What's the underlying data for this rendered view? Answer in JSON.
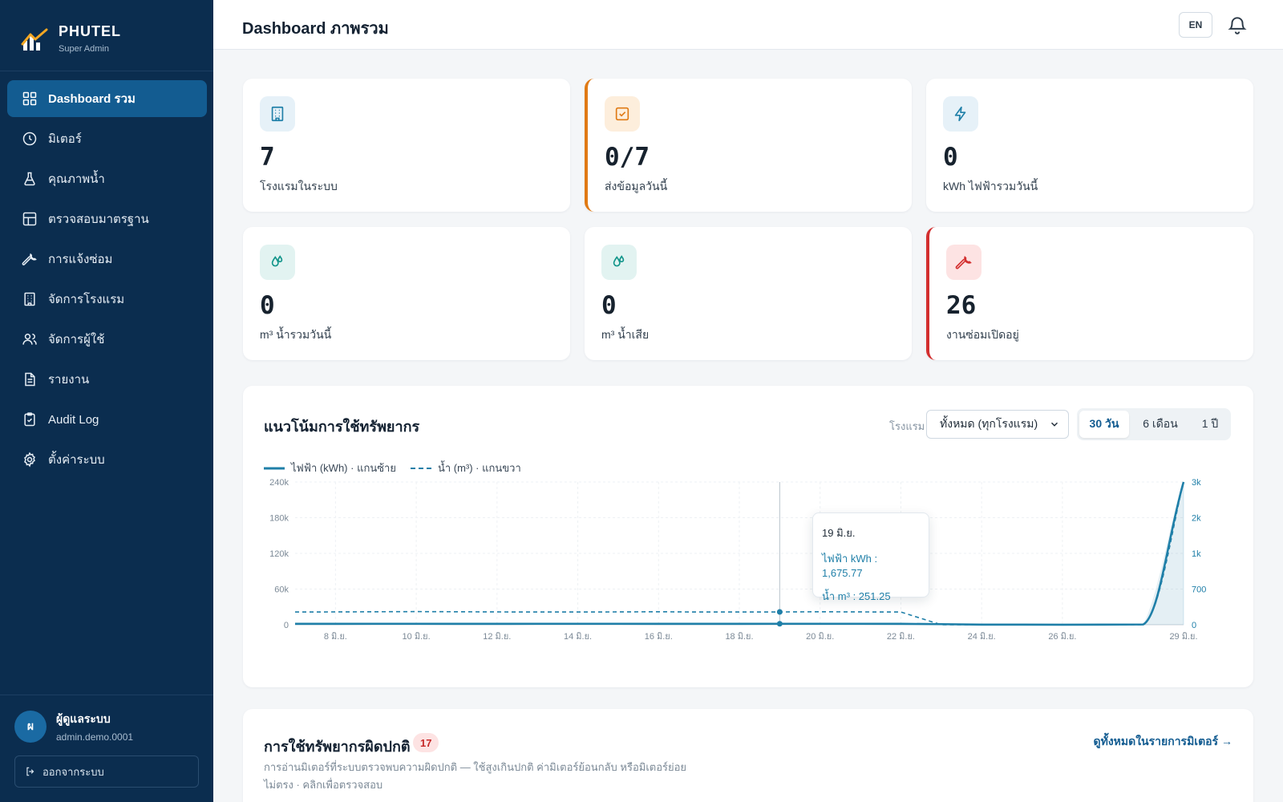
{
  "brand": {
    "name": "PHUTEL",
    "role": "Super Admin"
  },
  "sidebar": {
    "items": [
      {
        "label": "Dashboard รวม",
        "icon": "grid-icon",
        "active": true
      },
      {
        "label": "มิเตอร์",
        "icon": "clock-icon"
      },
      {
        "label": "คุณภาพน้ำ",
        "icon": "flask-icon"
      },
      {
        "label": "ตรวจสอบมาตรฐาน",
        "icon": "layout-icon"
      },
      {
        "label": "การแจ้งซ่อม",
        "icon": "wrench-icon"
      },
      {
        "label": "จัดการโรงแรม",
        "icon": "building-icon"
      },
      {
        "label": "จัดการผู้ใช้",
        "icon": "users-icon"
      },
      {
        "label": "รายงาน",
        "icon": "document-icon"
      },
      {
        "label": "Audit Log",
        "icon": "clipboard-icon"
      },
      {
        "label": "ตั้งค่าระบบ",
        "icon": "gear-icon"
      }
    ]
  },
  "user": {
    "initial": "ผ",
    "name": "ผู้ดูแลระบบ",
    "email": "admin.demo.0001"
  },
  "logout_label": "ออกจากระบบ",
  "header": {
    "title": "Dashboard ภาพรวม",
    "lang": "EN"
  },
  "stats": [
    {
      "value": "7",
      "label": "โรงแรมในระบบ",
      "icon": "building-icon",
      "color": "#1f7fa8"
    },
    {
      "value": "0/7",
      "label": "ส่งข้อมูลวันนี้",
      "icon": "checkbox-icon",
      "color": "#e07a14"
    },
    {
      "value": "0",
      "label": "kWh ไฟฟ้ารวมวันนี้",
      "icon": "lightning-icon",
      "color": "#1f7fa8"
    },
    {
      "value": "0",
      "label": "m³ น้ำรวมวันนี้",
      "icon": "droplet-icon",
      "color": "#12958a"
    },
    {
      "value": "0",
      "label": "m³ น้ำเสีย",
      "icon": "droplet-icon",
      "color": "#12958a"
    },
    {
      "value": "26",
      "label": "งานซ่อมเปิดอยู่",
      "icon": "wrench-icon",
      "color": "#d32f2f"
    }
  ],
  "trend": {
    "title": "แนวโน้มการใช้ทรัพยากร",
    "filter_label": "โรงแรม",
    "hotel_select": "ทั้งหมด (ทุกโรงแรม)",
    "ranges": [
      "30 วัน",
      "6 เดือน",
      "1 ปี"
    ],
    "active_range": "30 วัน",
    "legend": [
      "ไฟฟ้า (kWh) · แกนซ้าย",
      "น้ำ (m³) · แกนขวา"
    ],
    "tooltip": {
      "date": "19 มิ.ย.",
      "electric": "ไฟฟ้า kWh : 1,675.77",
      "water": "น้ำ m³ : 251.25"
    }
  },
  "chart_data": {
    "type": "line",
    "x_ticks": [
      "8 มิ.ย.",
      "10 มิ.ย.",
      "12 มิ.ย.",
      "14 มิ.ย.",
      "16 มิ.ย.",
      "18 มิ.ย.",
      "20 มิ.ย.",
      "22 มิ.ย.",
      "24 มิ.ย.",
      "26 มิ.ย.",
      "29 มิ.ย."
    ],
    "y_left_ticks": [
      "0",
      "60k",
      "120k",
      "180k",
      "240k"
    ],
    "y_right_ticks": [
      "0",
      "700",
      "1k",
      "2k",
      "3k"
    ],
    "ylim_left": [
      0,
      240000
    ],
    "x": [
      7,
      8,
      9,
      10,
      11,
      12,
      13,
      14,
      15,
      16,
      17,
      18,
      19,
      20,
      21,
      22,
      23,
      24,
      25,
      26,
      27,
      28,
      29
    ],
    "series": [
      {
        "name": "ไฟฟ้า (kWh) · แกนซ้าย",
        "axis": "left",
        "color": "#1f7fa8",
        "values": [
          1600,
          1650,
          1700,
          1680,
          1620,
          1650,
          1700,
          1680,
          1690,
          1660,
          1640,
          1660,
          1675.77,
          1700,
          1680,
          1600,
          1000,
          300,
          200,
          150,
          200,
          500,
          240000
        ]
      },
      {
        "name": "น้ำ (m³) · แกนขวา",
        "axis": "right",
        "color": "#1f7fa8",
        "values": [
          250,
          252,
          255,
          258,
          255,
          252,
          250,
          250,
          252,
          255,
          250,
          250,
          251.25,
          255,
          252,
          250,
          0,
          0,
          0,
          0,
          0,
          0,
          3000
        ]
      }
    ]
  },
  "anomaly": {
    "title": "การใช้ทรัพยากรผิดปกติ",
    "count": "17",
    "link": "ดูทั้งหมดในรายการมิเตอร์ →",
    "desc": "การอ่านมิเตอร์ที่ระบบตรวจพบความผิดปกติ — ใช้สูงเกินปกติ ค่ามิเตอร์ย้อนกลับ หรือมิเตอร์ย่อยไม่ตรง · คลิกเพื่อตรวจสอบ"
  }
}
